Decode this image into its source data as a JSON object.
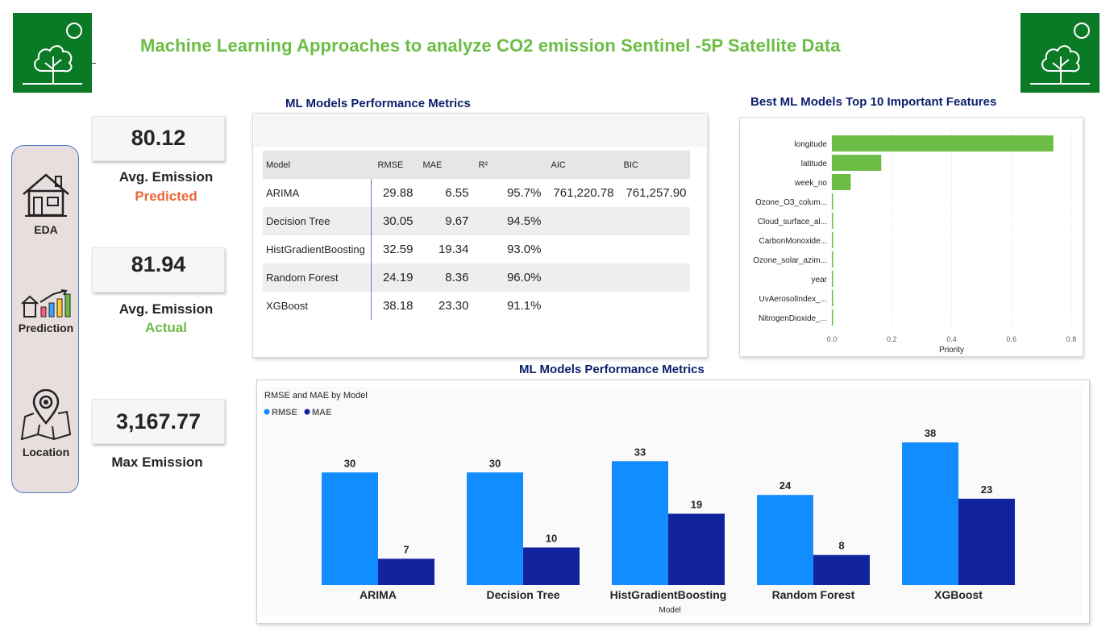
{
  "header": {
    "title": "Machine Learning Approaches to analyze CO2  emission Sentinel -5P Satellite Data",
    "logo_icon": "tree-icon",
    "brand_color": "#0a7a26",
    "title_color": "#6bbd45"
  },
  "nav": {
    "items": [
      {
        "label": "EDA",
        "icon": "house-icon"
      },
      {
        "label": "Prediction",
        "icon": "growth-chart-icon"
      },
      {
        "label": "Location",
        "icon": "map-pin-icon"
      }
    ]
  },
  "kpis": {
    "predicted": {
      "value": "80.12",
      "label": "Avg. Emission",
      "sub": "Predicted",
      "sub_color": "#e8673a"
    },
    "actual": {
      "value": "81.94",
      "label": "Avg. Emission",
      "sub": "Actual",
      "sub_color": "#6bbd45"
    },
    "max": {
      "value": "3,167.77",
      "label": "Max Emission"
    }
  },
  "metrics_table": {
    "title": "ML Models Performance Metrics",
    "columns": [
      "Model",
      "RMSE",
      "MAE",
      "R²",
      "AIC",
      "BIC"
    ],
    "rows": [
      [
        "ARIMA",
        "29.88",
        "6.55",
        "95.7%",
        "761,220.78",
        "761,257.90"
      ],
      [
        "Decision Tree",
        "30.05",
        "9.67",
        "94.5%",
        "",
        ""
      ],
      [
        "HistGradientBoosting",
        "32.59",
        "19.34",
        "93.0%",
        "",
        ""
      ],
      [
        "Random Forest",
        "24.19",
        "8.36",
        "96.0%",
        "",
        ""
      ],
      [
        "XGBoost",
        "38.18",
        "23.30",
        "91.1%",
        "",
        ""
      ]
    ]
  },
  "features_chart": {
    "title": "Best ML Models Top 10 Important Features",
    "bar_color": "#6bbd45"
  },
  "bar_chart": {
    "section_title": "ML Models Performance Metrics",
    "subtitle": "RMSE and MAE by Model",
    "colors": {
      "RMSE": "#118dff",
      "MAE": "#12239e"
    }
  },
  "chart_data": [
    {
      "type": "bar",
      "orientation": "horizontal",
      "title": "Best ML Models Top 10 Important Features",
      "categories": [
        "longitude",
        "latitude",
        "week_no",
        "Ozone_O3_colum...",
        "Cloud_surface_al...",
        "CarbonMonoxide...",
        "Ozone_solar_azim...",
        "year",
        "UvAerosolIndex_...",
        "NitrogenDioxide_..."
      ],
      "values": [
        0.74,
        0.165,
        0.063,
        0.004,
        0.004,
        0.003,
        0.003,
        0.003,
        0.002,
        0.002
      ],
      "xlabel": "Priority",
      "ylabel": "",
      "xticks": [
        "0.0",
        "0.2",
        "0.4",
        "0.6",
        "0.8"
      ],
      "xlim": [
        0,
        0.8
      ],
      "grid": true
    },
    {
      "type": "bar",
      "title": "RMSE and MAE by Model",
      "categories": [
        "ARIMA",
        "Decision Tree",
        "HistGradientBoosting",
        "Random Forest",
        "XGBoost"
      ],
      "series": [
        {
          "name": "RMSE",
          "values": [
            30,
            30,
            33,
            24,
            38
          ]
        },
        {
          "name": "MAE",
          "values": [
            7,
            10,
            19,
            8,
            23
          ]
        }
      ],
      "xlabel": "Model",
      "ylabel": "",
      "ylim": [
        0,
        38
      ],
      "legend": "top-left",
      "grid": false
    }
  ]
}
